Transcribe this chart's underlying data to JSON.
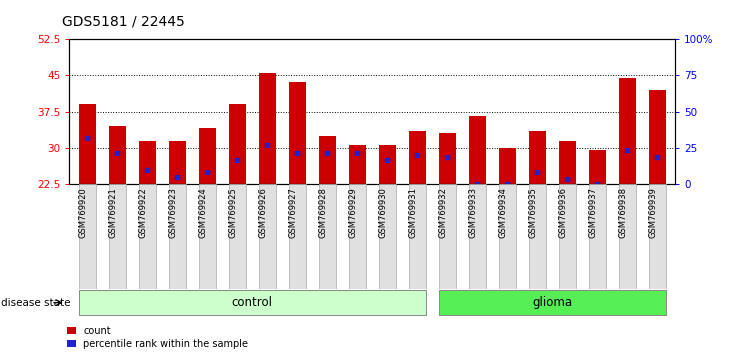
{
  "title": "GDS5181 / 22445",
  "samples": [
    "GSM769920",
    "GSM769921",
    "GSM769922",
    "GSM769923",
    "GSM769924",
    "GSM769925",
    "GSM769926",
    "GSM769927",
    "GSM769928",
    "GSM769929",
    "GSM769930",
    "GSM769931",
    "GSM769932",
    "GSM769933",
    "GSM769934",
    "GSM769935",
    "GSM769936",
    "GSM769937",
    "GSM769938",
    "GSM769939"
  ],
  "bar_heights": [
    39.0,
    34.5,
    31.5,
    31.5,
    34.0,
    39.0,
    45.5,
    43.5,
    32.5,
    30.5,
    30.5,
    33.5,
    33.0,
    36.5,
    30.0,
    33.5,
    31.5,
    29.5,
    44.5,
    42.0
  ],
  "blue_positions": [
    32.0,
    29.0,
    25.5,
    24.0,
    25.0,
    27.5,
    30.5,
    29.0,
    29.0,
    29.0,
    27.5,
    28.5,
    28.0,
    22.5,
    22.5,
    25.0,
    23.5,
    22.5,
    29.5,
    28.0
  ],
  "y_min": 22.5,
  "y_max": 52.5,
  "y_ticks_left": [
    22.5,
    30,
    37.5,
    45,
    52.5
  ],
  "y_ticks_right_vals": [
    0,
    25,
    50,
    75,
    100
  ],
  "y_ticks_right_labels": [
    "0",
    "25",
    "50",
    "75",
    "100%"
  ],
  "n_control": 12,
  "n_glioma": 8,
  "bar_color": "#cc0000",
  "blue_color": "#2222cc",
  "control_fill": "#ccffcc",
  "glioma_fill": "#55ee55",
  "control_label": "control",
  "glioma_label": "glioma",
  "disease_state_label": "disease state",
  "legend_count": "count",
  "legend_percentile": "percentile rank within the sample",
  "plot_bg": "#ffffff",
  "fig_bg": "#ffffff",
  "label_box_bg": "#e0e0e0",
  "label_box_edge": "#aaaaaa",
  "gridline_color": "#000000",
  "title_fontsize": 10,
  "tick_fontsize": 7.5,
  "sample_fontsize": 6.0,
  "dotted_gridlines": [
    30.0,
    37.5,
    45.0
  ]
}
